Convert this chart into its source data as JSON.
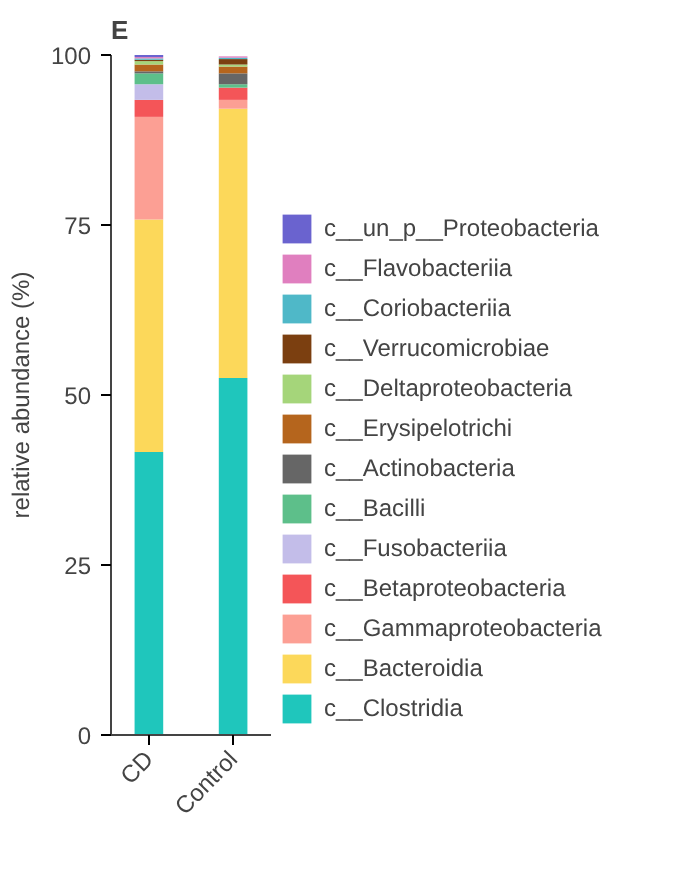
{
  "chart_data": {
    "type": "bar",
    "stacked": true,
    "title": "E",
    "ylabel": "relative abundance (%)",
    "categories": [
      "CD",
      "Control"
    ],
    "series": [
      {
        "name": "c__Clostridia",
        "color": "#1fc6bc",
        "values": [
          41.6,
          52.5
        ]
      },
      {
        "name": "c__Bacteroidia",
        "color": "#fcd85a",
        "values": [
          34.2,
          39.6
        ]
      },
      {
        "name": "c__Gammaproteobacteria",
        "color": "#fc9f94",
        "values": [
          15.1,
          1.3
        ]
      },
      {
        "name": "c__Betaproteobacteria",
        "color": "#f45558",
        "values": [
          2.5,
          1.8
        ]
      },
      {
        "name": "c__Fusobacteriia",
        "color": "#c3bde9",
        "values": [
          2.3,
          0
        ]
      },
      {
        "name": "c__Bacilli",
        "color": "#5dbf8a",
        "values": [
          1.6,
          0.5
        ]
      },
      {
        "name": "c__Actinobacteria",
        "color": "#666666",
        "values": [
          0.3,
          1.6
        ]
      },
      {
        "name": "c__Erysipelotrichi",
        "color": "#b5651d",
        "values": [
          1.0,
          1.0
        ]
      },
      {
        "name": "c__Deltaproteobacteria",
        "color": "#a5d57a",
        "values": [
          0.5,
          0.3
        ]
      },
      {
        "name": "c__Verrucomicrobiae",
        "color": "#7b3f10",
        "values": [
          0.2,
          0.8
        ]
      },
      {
        "name": "c__Coriobacteriia",
        "color": "#4fb8c8",
        "values": [
          0.2,
          0.2
        ]
      },
      {
        "name": "c__Flavobacteriia",
        "color": "#e07fbf",
        "values": [
          0.2,
          0.2
        ]
      },
      {
        "name": "c__un_p__Proteobacteria",
        "color": "#6a63cf",
        "values": [
          0.3,
          0
        ]
      }
    ],
    "ylim": [
      0,
      100
    ],
    "yticks": [
      0,
      25,
      50,
      75,
      100
    ],
    "legend": "right"
  }
}
